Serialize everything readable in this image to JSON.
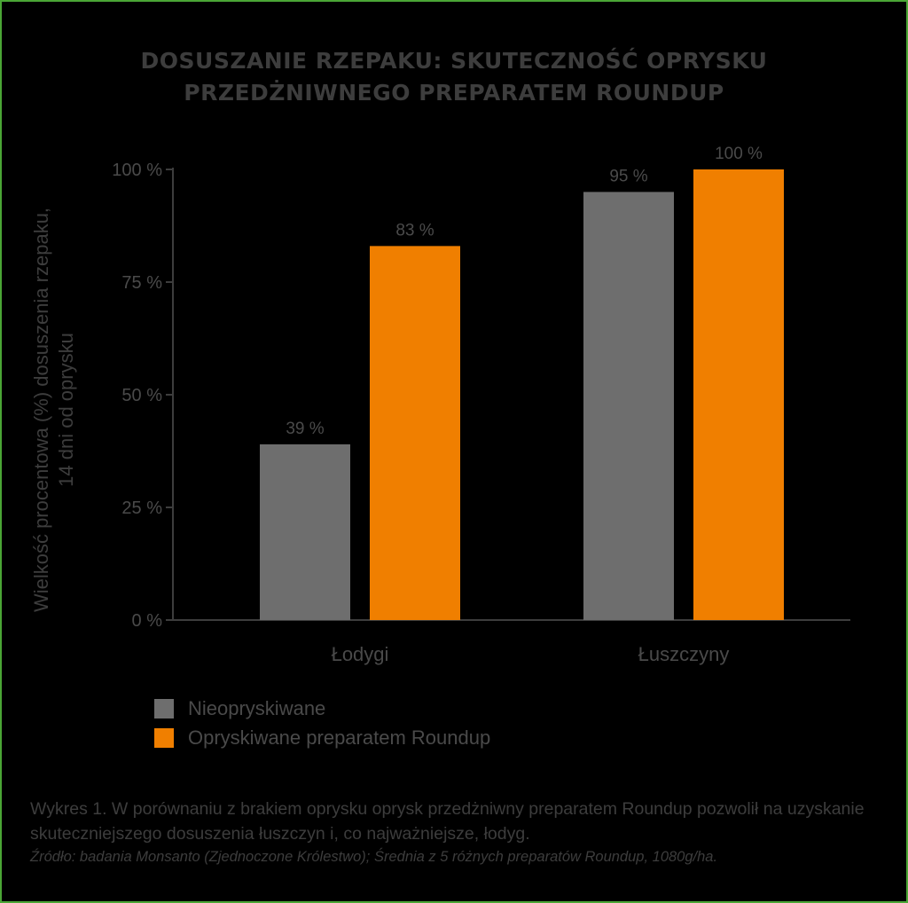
{
  "title": {
    "line1": "DOSUSZANIE RZEPAKU: SKUTECZNOŚĆ OPRYSKU",
    "line2": "PRZEDŻNIWNEGO PREPARATEM ROUNDUP"
  },
  "chart_data": {
    "type": "bar",
    "title": "DOSUSZANIE RZEPAKU: SKUTECZNOŚĆ OPRYSKU PRZEDŻNIWNEGO PREPARATEM ROUNDUP",
    "categories": [
      "Łodygi",
      "Łuszczyny"
    ],
    "series": [
      {
        "name": "Nieopryskiwane",
        "values": [
          39,
          95
        ],
        "labels": [
          "39 %",
          "95 %"
        ],
        "color": "#6e6e6e"
      },
      {
        "name": "Opryskiwane preparatem Roundup",
        "values": [
          83,
          100
        ],
        "labels": [
          "83 %",
          "100 %"
        ],
        "color": "#f07f00"
      }
    ],
    "ylabel_line1": "Wielkość procentowa (%) dosuszenia rzepaku,",
    "ylabel_line2": "14 dni od oprysku",
    "ylim": [
      0,
      100
    ],
    "yticks": [
      0,
      25,
      50,
      75,
      100
    ],
    "ytick_labels": [
      "0 %",
      "25 %",
      "50 %",
      "75 %",
      "100 %"
    ],
    "grid": false,
    "legend_position": "bottom-left"
  },
  "caption": {
    "main": "Wykres 1. W porównaniu z brakiem oprysku oprysk przedżniwny preparatem Roundup pozwolił na uzyskanie skuteczniejszego dosuszenia łuszczyn i, co najważniejsze, łodyg.",
    "source": "Źródło: badania Monsanto (Zjednoczone Królestwo); Średnia z 5 różnych preparatów Roundup, 1080g/ha."
  }
}
